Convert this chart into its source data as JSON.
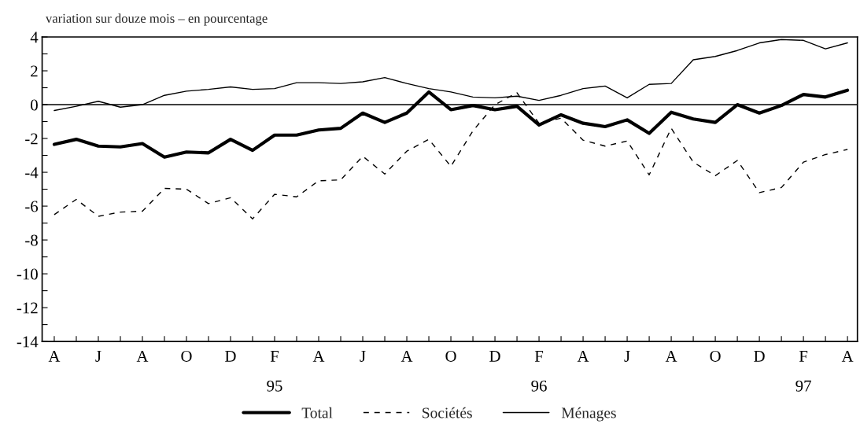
{
  "chart_data": {
    "type": "line",
    "subtitle": "variation sur douze mois – en pourcentage",
    "categories": [
      "A",
      null,
      "J",
      null,
      "A",
      null,
      "O",
      null,
      "D",
      null,
      "F\n\n95",
      null,
      "A",
      null,
      "J",
      null,
      "A",
      null,
      "O",
      null,
      "D",
      null,
      "F\n\n96",
      null,
      "A",
      null,
      "J",
      null,
      "A",
      null,
      "O",
      null,
      "D",
      null,
      "F\n\n97",
      null,
      "A"
    ],
    "series": [
      {
        "name": "Total",
        "color": "#000000",
        "line_style": "solid",
        "values": [
          -2.35,
          -2.05,
          -2.45,
          -2.5,
          -2.3,
          -3.1,
          -2.8,
          -2.85,
          -2.05,
          -2.7,
          -1.8,
          -1.8,
          -1.5,
          -1.4,
          -0.5,
          -1.05,
          -0.5,
          0.75,
          -0.3,
          -0.05,
          -0.3,
          -0.1,
          -1.2,
          -0.6,
          -1.1,
          -1.3,
          -0.9,
          -1.7,
          -0.45,
          -0.85,
          -1.05,
          0.0,
          -0.5,
          -0.05,
          0.6,
          0.45,
          0.85
        ]
      },
      {
        "name": "Sociétés",
        "color": "#000000",
        "line_style": "dashed",
        "values": [
          -6.5,
          -5.6,
          -6.6,
          -6.35,
          -6.3,
          -4.95,
          -5.0,
          -5.85,
          -5.5,
          -6.75,
          -5.3,
          -5.45,
          -4.5,
          -4.45,
          -3.05,
          -4.1,
          -2.75,
          -2.05,
          -3.65,
          -1.55,
          0.0,
          0.7,
          -1.1,
          -0.8,
          -2.1,
          -2.45,
          -2.15,
          -4.15,
          -1.4,
          -3.4,
          -4.2,
          -3.3,
          -5.2,
          -4.9,
          -3.4,
          -2.95,
          -2.65
        ]
      },
      {
        "name": "Ménages",
        "color": "#000000",
        "line_style": "solid",
        "values": [
          -0.35,
          -0.1,
          0.2,
          -0.15,
          0.0,
          0.55,
          0.8,
          0.9,
          1.05,
          0.9,
          0.95,
          1.3,
          1.3,
          1.25,
          1.35,
          1.6,
          1.25,
          0.95,
          0.75,
          0.45,
          0.4,
          0.5,
          0.25,
          0.55,
          0.95,
          1.1,
          0.4,
          1.2,
          1.25,
          2.65,
          2.85,
          3.2,
          3.65,
          3.85,
          3.8,
          3.3,
          3.65
        ]
      }
    ],
    "ylim": [
      -14,
      4
    ],
    "yticks": [
      -14,
      {
        "value": -13,
        "label": null
      },
      -12,
      {
        "value": -11,
        "label": null
      },
      -10,
      {
        "value": -9,
        "label": null
      },
      -8,
      {
        "value": -7,
        "label": null
      },
      -6,
      {
        "value": -5,
        "label": null
      },
      -4,
      {
        "value": -3,
        "label": null
      },
      -2,
      {
        "value": -1,
        "label": null
      },
      0,
      {
        "value": 1,
        "label": null
      },
      2,
      {
        "value": 3,
        "label": null
      },
      4
    ],
    "ref_lines": [
      {
        "axis": "y",
        "value": 0,
        "color": "#000000"
      }
    ],
    "grid": false,
    "legend": "bottom",
    "marker": "none"
  }
}
